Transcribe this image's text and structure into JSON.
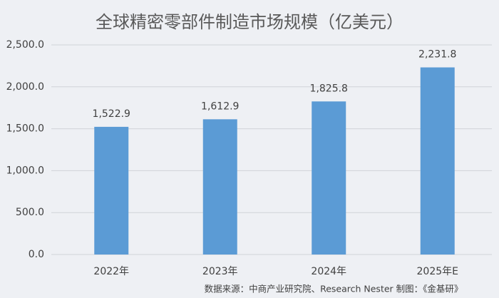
{
  "chart_data": {
    "type": "bar",
    "title": "全球精密零部件制造市场规模（亿美元）",
    "categories": [
      "2022年",
      "2023年",
      "2024年",
      "2025年E"
    ],
    "values": [
      1522.9,
      1612.9,
      1825.8,
      2231.8
    ],
    "value_labels": [
      "1,522.9",
      "1,612.9",
      "1,825.8",
      "2,231.8"
    ],
    "color": "#5b9bd5",
    "ylim": [
      0,
      2500
    ],
    "yticks": [
      {
        "value": 0,
        "label": "0.0"
      },
      {
        "value": 500,
        "label": "500.0"
      },
      {
        "value": 1000,
        "label": "1,000.0"
      },
      {
        "value": 1500,
        "label": "1,500.0"
      },
      {
        "value": 2000,
        "label": "2,000.0"
      },
      {
        "value": 2500,
        "label": "2,500.0"
      }
    ],
    "grid": true,
    "source": "数据来源：中商产业研究院、Research Nester   制图：《金基研》"
  }
}
